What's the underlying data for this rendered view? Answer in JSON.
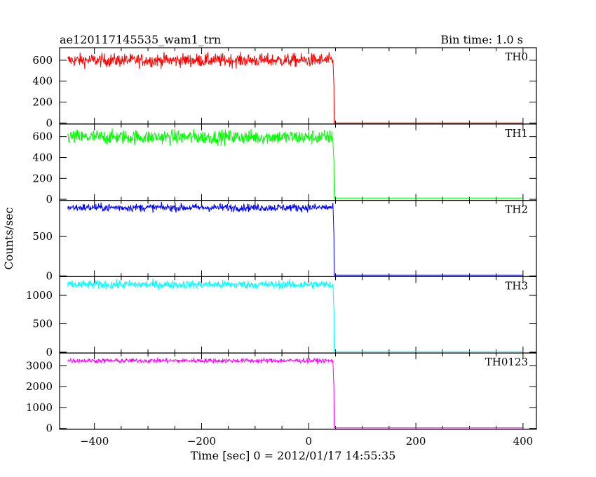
{
  "chart_data": {
    "type": "line",
    "title": "ae120117145535_wam1_trn",
    "subtitle": "Bin time: 1.0 s",
    "xlabel": "Time [sec] 0 = 2012/01/17 14:55:35",
    "ylabel": "Counts/sec",
    "xlim": [
      -465,
      425
    ],
    "xticks": [
      -400,
      -200,
      0,
      200,
      400
    ],
    "x_range": [
      -450,
      400
    ],
    "drop_time": 46,
    "grid": false,
    "panels": [
      {
        "name": "TH0",
        "color": "#ff0000",
        "ylim": [
          -10,
          720
        ],
        "yticks": [
          0,
          200,
          400,
          600
        ],
        "level_before": 600,
        "noise": 32,
        "level_after": 1
      },
      {
        "name": "TH1",
        "color": "#00ff00",
        "ylim": [
          -10,
          720
        ],
        "yticks": [
          0,
          200,
          400,
          600
        ],
        "level_before": 595,
        "noise": 35,
        "level_after": 12
      },
      {
        "name": "TH2",
        "color": "#0000ff",
        "ylim": [
          -10,
          960
        ],
        "yticks": [
          0,
          500
        ],
        "level_before": 868,
        "noise": 25,
        "level_after": 10
      },
      {
        "name": "TH3",
        "color": "#00ffff",
        "ylim": [
          -15,
          1330
        ],
        "yticks": [
          0,
          500,
          1000
        ],
        "level_before": 1190,
        "noise": 38,
        "level_after": 10
      },
      {
        "name": "TH0123",
        "color": "#ff00ff",
        "ylim": [
          -50,
          3620
        ],
        "yticks": [
          0,
          1000,
          2000,
          3000
        ],
        "level_before": 3250,
        "noise": 55,
        "level_after": 20
      }
    ]
  }
}
